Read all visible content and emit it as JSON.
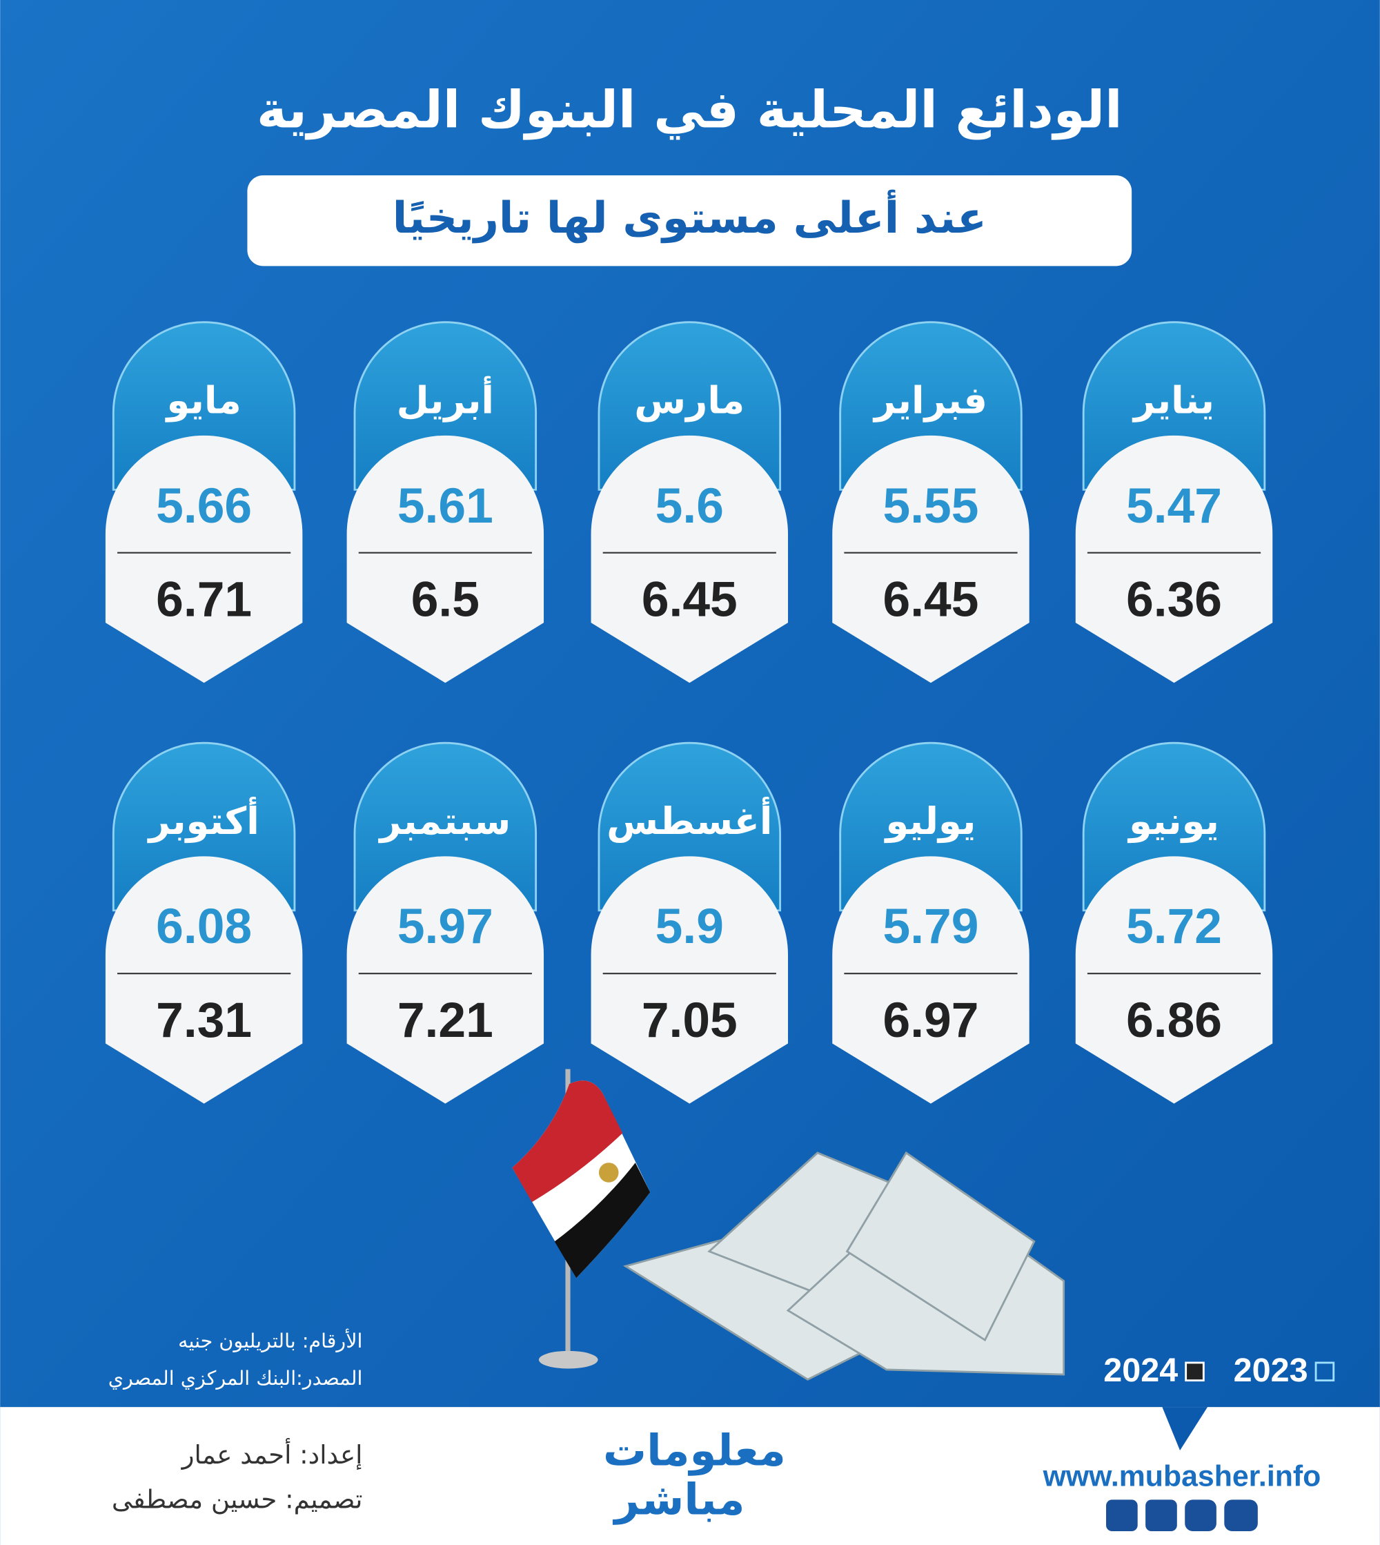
{
  "header": {
    "title": "الودائع المحلية في البنوك المصرية",
    "subtitle": "عند أعلى مستوى لها تاريخيًا"
  },
  "legend": {
    "items": [
      {
        "label": "2023",
        "color": "#2a94d0"
      },
      {
        "label": "2024",
        "color": "#222222"
      }
    ]
  },
  "cards": [
    {
      "month": "يناير",
      "values": [
        5.47,
        6.36
      ]
    },
    {
      "month": "فبراير",
      "values": [
        5.55,
        6.45
      ]
    },
    {
      "month": "مارس",
      "values": [
        5.6,
        6.45
      ]
    },
    {
      "month": "أبريل",
      "values": [
        5.61,
        6.5
      ]
    },
    {
      "month": "مايو",
      "values": [
        5.66,
        6.71
      ]
    },
    {
      "month": "يونيو",
      "values": [
        5.72,
        6.86
      ]
    },
    {
      "month": "يوليو",
      "values": [
        5.79,
        6.97
      ]
    },
    {
      "month": "أغسطس",
      "values": [
        5.9,
        7.05
      ]
    },
    {
      "month": "سبتمبر",
      "values": [
        5.97,
        7.21
      ]
    },
    {
      "month": "أكتوبر",
      "values": [
        6.08,
        7.31
      ]
    }
  ],
  "notes": {
    "unit": "الأرقام: بالتريليون جنيه",
    "source": "المصدر:البنك المركزي المصري"
  },
  "footer": {
    "prepared": "إعداد: أحمد عمار",
    "design": "تصميم: حسين مصطفى",
    "logo_top": "معلومات",
    "logo_bottom": "مباشر",
    "url": "www.mubasher.info"
  }
}
